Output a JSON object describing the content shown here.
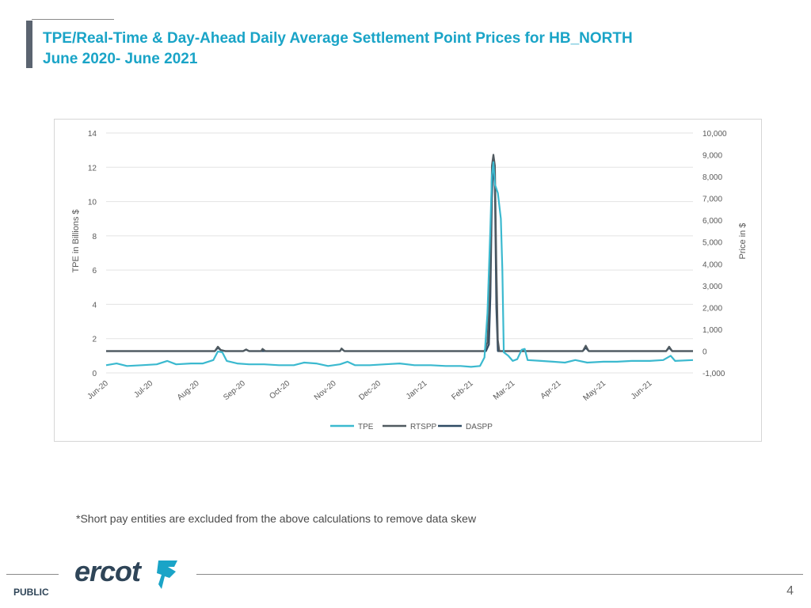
{
  "slide": {
    "title_line1": "TPE/Real-Time & Day-Ahead Daily Average Settlement Point Prices for HB_NORTH",
    "title_line2": "June 2020- June 2021",
    "footnote": "*Short pay entities are excluded from the above calculations to remove data skew",
    "public_label": "PUBLIC",
    "page_number": "4",
    "logo_text": "ercot",
    "logo_icon": "ercot-texas-star-logo",
    "title_color": "#1aa4c7"
  },
  "chart_data": {
    "type": "line",
    "title": "",
    "x_tick_labels": [
      "Jun-20",
      "Jul-20",
      "Aug-20",
      "Sep-20",
      "Oct-20",
      "Nov-20",
      "Dec-20",
      "Jan-21",
      "Feb-21",
      "Mar-21",
      "Apr-21",
      "May-21",
      "Jun-21"
    ],
    "x_range": [
      "2020-06-01",
      "2021-06-30"
    ],
    "y_left_label": "TPE in Billions $",
    "y_left_range": [
      0,
      14
    ],
    "y_left_ticks": [
      "0",
      "2",
      "4",
      "6",
      "8",
      "10",
      "12",
      "14"
    ],
    "y_right_label": "Price in $",
    "y_right_range": [
      -1000,
      10000
    ],
    "y_right_ticks": [
      "-1,000",
      "0",
      "1,000",
      "2,000",
      "3,000",
      "4,000",
      "5,000",
      "6,000",
      "7,000",
      "8,000",
      "9,000",
      "10,000"
    ],
    "grid": true,
    "legend_position": "bottom",
    "series": [
      {
        "name": "TPE",
        "axis": "left",
        "color": "#3bb9cf",
        "points": [
          [
            "2020-06-01",
            0.45
          ],
          [
            "2020-06-08",
            0.55
          ],
          [
            "2020-06-15",
            0.4
          ],
          [
            "2020-06-25",
            0.45
          ],
          [
            "2020-07-05",
            0.5
          ],
          [
            "2020-07-12",
            0.7
          ],
          [
            "2020-07-18",
            0.5
          ],
          [
            "2020-07-28",
            0.55
          ],
          [
            "2020-08-05",
            0.55
          ],
          [
            "2020-08-12",
            0.75
          ],
          [
            "2020-08-15",
            1.25
          ],
          [
            "2020-08-18",
            1.2
          ],
          [
            "2020-08-21",
            0.7
          ],
          [
            "2020-08-28",
            0.55
          ],
          [
            "2020-09-05",
            0.5
          ],
          [
            "2020-09-15",
            0.5
          ],
          [
            "2020-09-25",
            0.45
          ],
          [
            "2020-10-05",
            0.45
          ],
          [
            "2020-10-12",
            0.6
          ],
          [
            "2020-10-20",
            0.55
          ],
          [
            "2020-10-28",
            0.4
          ],
          [
            "2020-11-05",
            0.5
          ],
          [
            "2020-11-10",
            0.65
          ],
          [
            "2020-11-15",
            0.45
          ],
          [
            "2020-11-25",
            0.45
          ],
          [
            "2020-12-05",
            0.5
          ],
          [
            "2020-12-15",
            0.55
          ],
          [
            "2020-12-25",
            0.45
          ],
          [
            "2021-01-05",
            0.45
          ],
          [
            "2021-01-15",
            0.4
          ],
          [
            "2021-01-25",
            0.4
          ],
          [
            "2021-02-01",
            0.35
          ],
          [
            "2021-02-07",
            0.4
          ],
          [
            "2021-02-10",
            0.9
          ],
          [
            "2021-02-12",
            3.5
          ],
          [
            "2021-02-14",
            8.5
          ],
          [
            "2021-02-15",
            11.5
          ],
          [
            "2021-02-16",
            12.3
          ],
          [
            "2021-02-17",
            11.0
          ],
          [
            "2021-02-19",
            10.5
          ],
          [
            "2021-02-21",
            9.0
          ],
          [
            "2021-02-22",
            6.0
          ],
          [
            "2021-02-23",
            1.2
          ],
          [
            "2021-02-26",
            1.0
          ],
          [
            "2021-03-01",
            0.7
          ],
          [
            "2021-03-04",
            0.8
          ],
          [
            "2021-03-07",
            1.35
          ],
          [
            "2021-03-09",
            1.4
          ],
          [
            "2021-03-11",
            0.75
          ],
          [
            "2021-03-20",
            0.7
          ],
          [
            "2021-03-28",
            0.65
          ],
          [
            "2021-04-05",
            0.6
          ],
          [
            "2021-04-12",
            0.75
          ],
          [
            "2021-04-20",
            0.6
          ],
          [
            "2021-05-01",
            0.65
          ],
          [
            "2021-05-10",
            0.65
          ],
          [
            "2021-05-20",
            0.7
          ],
          [
            "2021-06-01",
            0.7
          ],
          [
            "2021-06-10",
            0.75
          ],
          [
            "2021-06-15",
            1.0
          ],
          [
            "2021-06-18",
            0.7
          ],
          [
            "2021-06-30",
            0.75
          ]
        ]
      },
      {
        "name": "RTSPP",
        "axis": "right",
        "color": "#505a60",
        "points": [
          [
            "2020-06-01",
            0
          ],
          [
            "2020-08-13",
            0
          ],
          [
            "2020-08-15",
            200
          ],
          [
            "2020-08-17",
            50
          ],
          [
            "2020-08-20",
            0
          ],
          [
            "2020-09-01",
            0
          ],
          [
            "2020-09-03",
            80
          ],
          [
            "2020-09-05",
            0
          ],
          [
            "2020-09-13",
            0
          ],
          [
            "2020-09-14",
            100
          ],
          [
            "2020-09-16",
            0
          ],
          [
            "2020-11-05",
            0
          ],
          [
            "2020-11-06",
            120
          ],
          [
            "2020-11-08",
            0
          ],
          [
            "2021-02-10",
            0
          ],
          [
            "2021-02-12",
            400
          ],
          [
            "2021-02-14",
            3500
          ],
          [
            "2021-02-15",
            8500
          ],
          [
            "2021-02-16",
            9000
          ],
          [
            "2021-02-17",
            8500
          ],
          [
            "2021-02-18",
            4000
          ],
          [
            "2021-02-19",
            500
          ],
          [
            "2021-02-20",
            0
          ],
          [
            "2021-04-17",
            0
          ],
          [
            "2021-04-19",
            250
          ],
          [
            "2021-04-21",
            0
          ],
          [
            "2021-06-12",
            0
          ],
          [
            "2021-06-14",
            200
          ],
          [
            "2021-06-16",
            0
          ],
          [
            "2021-06-30",
            0
          ]
        ]
      },
      {
        "name": "DASPP",
        "axis": "right",
        "color": "#2e4a63",
        "points": [
          [
            "2020-06-01",
            0
          ],
          [
            "2020-08-13",
            0
          ],
          [
            "2020-08-15",
            150
          ],
          [
            "2020-08-17",
            40
          ],
          [
            "2020-08-20",
            0
          ],
          [
            "2020-09-01",
            0
          ],
          [
            "2020-09-03",
            60
          ],
          [
            "2020-09-05",
            0
          ],
          [
            "2020-11-05",
            0
          ],
          [
            "2020-11-06",
            100
          ],
          [
            "2020-11-08",
            0
          ],
          [
            "2021-02-11",
            0
          ],
          [
            "2021-02-13",
            300
          ],
          [
            "2021-02-14",
            2500
          ],
          [
            "2021-02-15",
            7000
          ],
          [
            "2021-02-16",
            8800
          ],
          [
            "2021-02-17",
            7500
          ],
          [
            "2021-02-18",
            2000
          ],
          [
            "2021-02-19",
            0
          ],
          [
            "2021-04-17",
            0
          ],
          [
            "2021-04-19",
            150
          ],
          [
            "2021-04-21",
            0
          ],
          [
            "2021-06-12",
            0
          ],
          [
            "2021-06-14",
            150
          ],
          [
            "2021-06-16",
            0
          ],
          [
            "2021-06-30",
            0
          ]
        ]
      }
    ]
  }
}
